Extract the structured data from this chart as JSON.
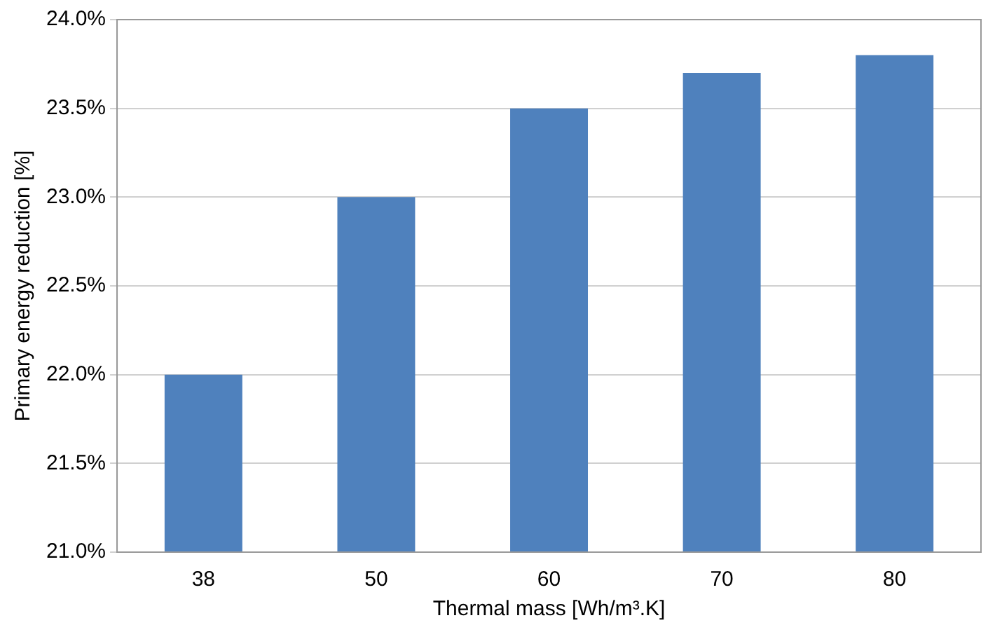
{
  "chart_data": {
    "type": "bar",
    "xlabel": "Thermal mass [Wh/m³.K]",
    "ylabel": "Primary energy reduction [%]",
    "categories": [
      "38",
      "50",
      "60",
      "70",
      "80"
    ],
    "values": [
      22.0,
      23.0,
      23.5,
      23.7,
      23.8
    ],
    "color": "#4f81bd",
    "ylim": [
      21,
      24
    ],
    "yticks": [
      {
        "value": 21,
        "label": "21.0%"
      },
      {
        "value": 21.5,
        "label": "21.5%"
      },
      {
        "value": 22,
        "label": "22.0%"
      },
      {
        "value": 22.5,
        "label": "22.5%"
      },
      {
        "value": 23,
        "label": "23.0%"
      },
      {
        "value": 23.5,
        "label": "23.5%"
      },
      {
        "value": 24,
        "label": "24.0%"
      }
    ],
    "grid": "y"
  }
}
